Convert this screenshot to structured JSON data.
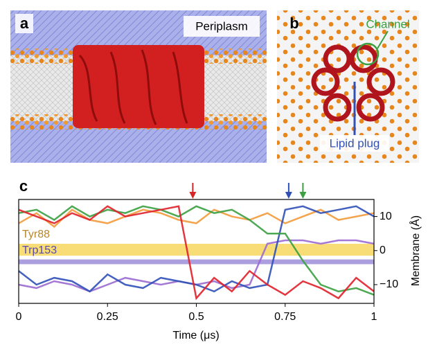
{
  "panels": {
    "a": {
      "label": "a",
      "annotation": "Periplasm"
    },
    "b": {
      "label": "b",
      "annotations": [
        "Channel",
        "Lipid plug"
      ]
    }
  },
  "chart_data": {
    "type": "line",
    "label": "c",
    "xlabel": "Time (μs)",
    "ylabel": "Membrane (Å)",
    "xlim": [
      0,
      1
    ],
    "xticks": [
      0,
      0.25,
      0.5,
      0.75,
      1
    ],
    "ylim": [
      -15.5,
      15
    ],
    "yticks": [
      10,
      0,
      {
        "value": -10,
        "label": "−10"
      }
    ],
    "bands": [
      {
        "name": "Tyr88",
        "color": "#f5d24a",
        "label_color": "#b8862b",
        "range": [
          -1.5,
          2
        ]
      },
      {
        "name": "Trp153",
        "color": "#8f7fd6",
        "label_color": "#5a4aa8",
        "range": [
          -4,
          -2.6
        ]
      }
    ],
    "events": [
      {
        "x": 0.49,
        "color": "#d62728"
      },
      {
        "x": 0.76,
        "color": "#3050b8"
      },
      {
        "x": 0.8,
        "color": "#3aa040"
      }
    ],
    "x": [
      0,
      0.05,
      0.1,
      0.15,
      0.2,
      0.25,
      0.3,
      0.35,
      0.4,
      0.45,
      0.5,
      0.55,
      0.6,
      0.65,
      0.7,
      0.75,
      0.8,
      0.85,
      0.9,
      0.95,
      1
    ],
    "series": [
      {
        "color": "#f29a3a",
        "values": [
          8,
          11,
          7,
          12,
          9,
          8,
          10,
          12,
          11,
          9,
          8,
          12,
          10,
          9,
          11,
          8,
          10,
          12,
          9,
          10,
          11
        ]
      },
      {
        "color": "#9a6ad0",
        "values": [
          -10,
          -11,
          -9,
          -10,
          -12,
          -10,
          -8,
          -9,
          -10,
          -9,
          -10,
          -9,
          -11,
          -10,
          2,
          3,
          3,
          2,
          3,
          3,
          2
        ]
      },
      {
        "color": "#3050b8",
        "values": [
          -6,
          -10,
          -8,
          -9,
          -12,
          -7,
          -10,
          -11,
          -8,
          -9,
          -10,
          -12,
          -9,
          -11,
          -10,
          12,
          13,
          11,
          12,
          13,
          10
        ]
      },
      {
        "color": "#3aa040",
        "values": [
          11,
          12,
          9,
          13,
          10,
          12,
          11,
          13,
          12,
          10,
          13,
          11,
          12,
          9,
          5,
          5,
          -3,
          -10,
          -12,
          -11,
          -13
        ]
      },
      {
        "color": "#e0202a",
        "values": [
          12,
          10,
          8,
          11,
          9,
          13,
          10,
          11,
          12,
          13,
          -14,
          -8,
          -12,
          -6,
          -10,
          -13,
          -9,
          -11,
          -14,
          -8,
          -12
        ]
      }
    ]
  }
}
